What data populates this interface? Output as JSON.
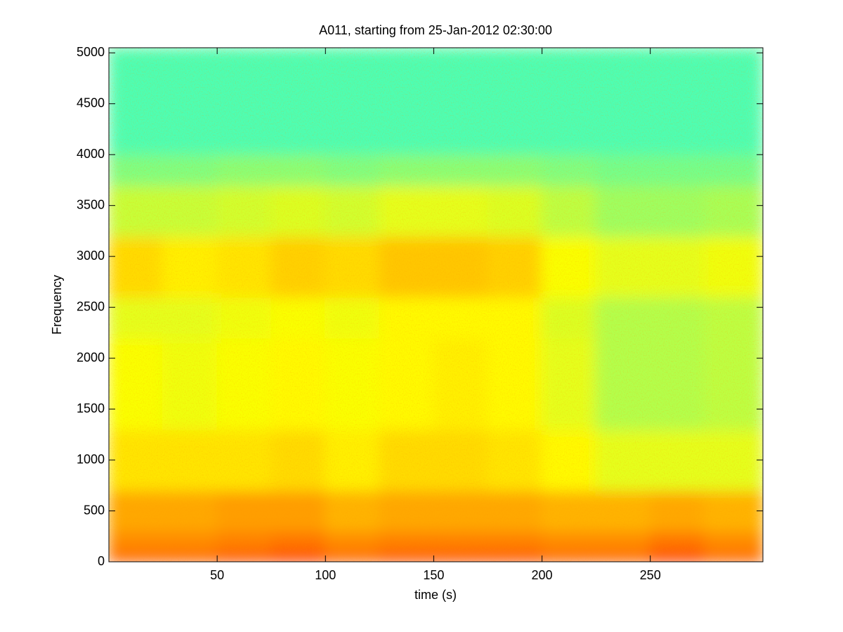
{
  "chart_data": {
    "type": "heatmap",
    "title": "A011, starting from 25-Jan-2012 02:30:00",
    "x_label": "time (s)",
    "y_label": "Frequency",
    "colormap": "jet",
    "xbins": [
      0,
      25,
      50,
      75,
      100,
      125,
      150,
      175,
      200,
      225,
      250,
      275,
      302
    ],
    "ybins": [
      0,
      100,
      300,
      700,
      1300,
      2200,
      2600,
      3200,
      3700,
      4000,
      5050
    ],
    "z": [
      [
        0.78,
        0.78,
        0.8,
        0.82,
        0.78,
        0.8,
        0.8,
        0.8,
        0.78,
        0.78,
        0.82,
        0.78
      ],
      [
        0.74,
        0.74,
        0.75,
        0.76,
        0.74,
        0.75,
        0.75,
        0.75,
        0.74,
        0.74,
        0.76,
        0.74
      ],
      [
        0.71,
        0.71,
        0.72,
        0.72,
        0.7,
        0.71,
        0.71,
        0.71,
        0.7,
        0.7,
        0.71,
        0.7
      ],
      [
        0.65,
        0.65,
        0.65,
        0.66,
        0.64,
        0.66,
        0.66,
        0.65,
        0.63,
        0.6,
        0.6,
        0.6
      ],
      [
        0.62,
        0.61,
        0.62,
        0.63,
        0.62,
        0.63,
        0.64,
        0.63,
        0.6,
        0.55,
        0.55,
        0.56
      ],
      [
        0.6,
        0.6,
        0.61,
        0.62,
        0.61,
        0.63,
        0.63,
        0.63,
        0.59,
        0.55,
        0.55,
        0.56
      ],
      [
        0.66,
        0.64,
        0.65,
        0.67,
        0.66,
        0.68,
        0.68,
        0.67,
        0.62,
        0.6,
        0.6,
        0.61
      ],
      [
        0.57,
        0.57,
        0.58,
        0.59,
        0.58,
        0.6,
        0.6,
        0.59,
        0.56,
        0.53,
        0.53,
        0.54
      ],
      [
        0.5,
        0.5,
        0.51,
        0.51,
        0.5,
        0.51,
        0.51,
        0.51,
        0.5,
        0.49,
        0.49,
        0.49
      ],
      [
        0.45,
        0.45,
        0.45,
        0.45,
        0.45,
        0.45,
        0.45,
        0.45,
        0.45,
        0.45,
        0.45,
        0.45
      ]
    ],
    "xlim": [
      0,
      302
    ],
    "ylim": [
      0,
      5050
    ],
    "xticks": [
      50,
      100,
      150,
      200,
      250
    ],
    "yticks": [
      0,
      500,
      1000,
      1500,
      2000,
      2500,
      3000,
      3500,
      4000,
      4500,
      5000
    ]
  }
}
